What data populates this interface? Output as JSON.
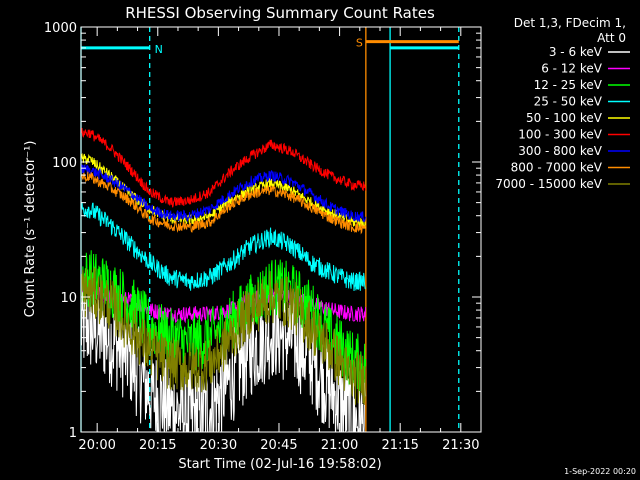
{
  "chart_data": {
    "type": "line",
    "title": "RHESSI Observing Summary Count Rates",
    "xlabel": "Start Time (02-Jul-16 19:58:02)",
    "ylabel": "Count Rate (s⁻¹ detector⁻¹)",
    "yscale": "log",
    "ylim": [
      1,
      1000
    ],
    "xlim_minutes": [
      -2.0,
      97.0
    ],
    "x_ticks": [
      "20:00",
      "20:15",
      "20:30",
      "20:45",
      "21:00",
      "21:15",
      "21:30"
    ],
    "y_ticks": [
      "1",
      "10",
      "100",
      "1000"
    ],
    "legend_header": [
      "Det 1,3, FDecim 1,",
      "Att 0"
    ],
    "footer_date": "1-Sep-2022 00:20",
    "data_end_minute": 68.5,
    "flags": [
      {
        "label": "N",
        "color": "#00ffff",
        "value": 700,
        "start_minute": -2.0,
        "end_minute": 15.0
      },
      {
        "label": "S",
        "color": "#ff8c00",
        "value": 780,
        "start_minute": 68.5,
        "end_minute": 91.5
      },
      {
        "label": "",
        "color": "#00ffff",
        "value": 700,
        "start_minute": 74.5,
        "end_minute": 91.5
      }
    ],
    "markers": [
      {
        "minute": -2.0,
        "color": "#00ffff",
        "style": "solid"
      },
      {
        "minute": 15.0,
        "color": "#00ffff",
        "style": "dashed"
      },
      {
        "minute": 68.5,
        "color": "#ff8c00",
        "style": "solid"
      },
      {
        "minute": 74.5,
        "color": "#00ffff",
        "style": "solid"
      },
      {
        "minute": 91.5,
        "color": "#00ffff",
        "style": "dashed"
      }
    ],
    "series_x_minutes": [
      0,
      5,
      10,
      15,
      20,
      25,
      30,
      35,
      40,
      45,
      50,
      55,
      60,
      65,
      68.5
    ],
    "series": [
      {
        "name": "3 - 6 keV",
        "color": "#ffffff",
        "noise": 0.35,
        "values": [
          6,
          5,
          3.5,
          2,
          1.5,
          1.3,
          1.5,
          2.5,
          4,
          5.5,
          5,
          3.5,
          2,
          1.3,
          1.1
        ]
      },
      {
        "name": "6 - 12 keV",
        "color": "#ff00ff",
        "noise": 0.06,
        "values": [
          11,
          10,
          9.5,
          8,
          7.5,
          7.5,
          7.5,
          8,
          9.5,
          10.5,
          10,
          9,
          8,
          7.5,
          7.5
        ]
      },
      {
        "name": "12 - 25 keV",
        "color": "#00ff00",
        "noise": 0.22,
        "values": [
          14,
          12,
          9,
          6,
          5,
          4.5,
          5,
          6.5,
          9,
          12,
          11,
          8,
          5,
          3.5,
          3
        ]
      },
      {
        "name": "25 - 50 keV",
        "color": "#00ffff",
        "noise": 0.07,
        "values": [
          45,
          35,
          25,
          18,
          14,
          13,
          14,
          18,
          24,
          28,
          24,
          18,
          15,
          13,
          13
        ]
      },
      {
        "name": "50 - 100 keV",
        "color": "#ffff00",
        "noise": 0.04,
        "values": [
          105,
          80,
          58,
          45,
          38,
          37,
          40,
          52,
          62,
          70,
          62,
          50,
          42,
          36,
          35
        ]
      },
      {
        "name": "100 - 300 keV",
        "color": "#ff0000",
        "noise": 0.04,
        "values": [
          165,
          130,
          90,
          60,
          50,
          52,
          60,
          85,
          110,
          135,
          120,
          95,
          78,
          68,
          66
        ]
      },
      {
        "name": "300 - 800 keV",
        "color": "#0000ff",
        "noise": 0.04,
        "values": [
          88,
          75,
          60,
          45,
          40,
          40,
          45,
          58,
          72,
          80,
          72,
          58,
          46,
          40,
          39
        ]
      },
      {
        "name": "800 - 7000 keV",
        "color": "#ff8c00",
        "noise": 0.04,
        "values": [
          78,
          65,
          52,
          38,
          34,
          33,
          36,
          48,
          58,
          62,
          56,
          46,
          38,
          33,
          32
        ]
      },
      {
        "name": "7000 - 15000 keV",
        "color": "#808000",
        "noise": 0.2,
        "values": [
          11,
          9,
          6,
          4,
          3.2,
          3,
          3.2,
          5,
          8,
          10,
          9,
          6,
          4,
          2.5,
          2.5
        ]
      }
    ]
  }
}
